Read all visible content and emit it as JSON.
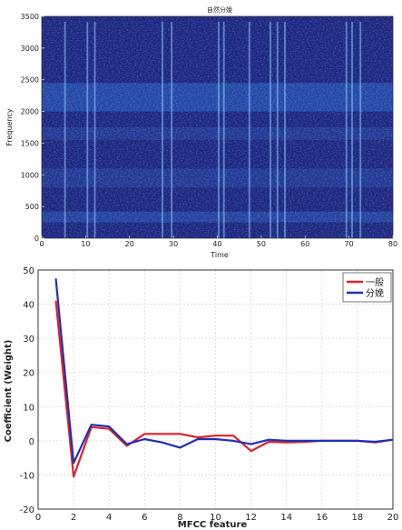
{
  "colors": {
    "spectrogram_bg": "#1a237e",
    "spectrogram_band": "#2a63c4",
    "spectrogram_streak": "#8fd0ff",
    "series_1": "#e0202a",
    "series_2": "#1f2fb8",
    "grid": "#d6d6d6"
  },
  "chart_data": [
    {
      "type": "heatmap",
      "title": "自然分娩",
      "xlabel": "Time",
      "ylabel": "Frequency",
      "xlim": [
        0,
        80
      ],
      "ylim": [
        0,
        3500
      ],
      "xticks": [
        0,
        10,
        20,
        30,
        40,
        50,
        60,
        70,
        80
      ],
      "yticks": [
        0,
        500,
        1000,
        1500,
        2000,
        2500,
        3000,
        3500
      ],
      "bright_bands": [
        {
          "from": 2000,
          "to": 2450,
          "level": 0.55
        },
        {
          "from": 1550,
          "to": 1750,
          "level": 0.3
        },
        {
          "from": 800,
          "to": 1100,
          "level": 0.3
        },
        {
          "from": 250,
          "to": 420,
          "level": 0.45
        }
      ],
      "bright_times": [
        5.3,
        10.4,
        12.1,
        27.5,
        29.6,
        40.3,
        41.5,
        47.3,
        52.1,
        53.7,
        55.4,
        69.4,
        70.7,
        72.6
      ]
    },
    {
      "type": "line",
      "xlabel": "MFCC feature",
      "ylabel": "Coefficient (Weight)",
      "xlim": [
        0,
        20
      ],
      "ylim": [
        -20,
        50
      ],
      "xticks": [
        0,
        2,
        4,
        6,
        8,
        10,
        12,
        14,
        16,
        18,
        20
      ],
      "yticks": [
        -20,
        -10,
        0,
        10,
        20,
        30,
        40,
        50
      ],
      "grid": true,
      "legend_position": "top-right",
      "x": [
        1,
        2,
        3,
        4,
        5,
        6,
        7,
        8,
        9,
        10,
        11,
        12,
        13,
        14,
        15,
        16,
        17,
        18,
        19,
        20
      ],
      "series": [
        {
          "name": "一般",
          "color": "#e0202a",
          "values": [
            41,
            -10.5,
            4,
            3.5,
            -1.5,
            2,
            2,
            2,
            1,
            1.5,
            1.5,
            -3,
            -0.3,
            -0.5,
            -0.3,
            0,
            0,
            0,
            -0.5,
            0.3
          ]
        },
        {
          "name": "分娩",
          "color": "#1f2fb8",
          "values": [
            47.5,
            -6.5,
            4.7,
            4.2,
            -1,
            0.5,
            -0.5,
            -2,
            0.5,
            0.5,
            0,
            -1,
            0.3,
            0,
            0,
            0,
            0,
            0,
            -0.3,
            0.3
          ]
        }
      ]
    }
  ]
}
